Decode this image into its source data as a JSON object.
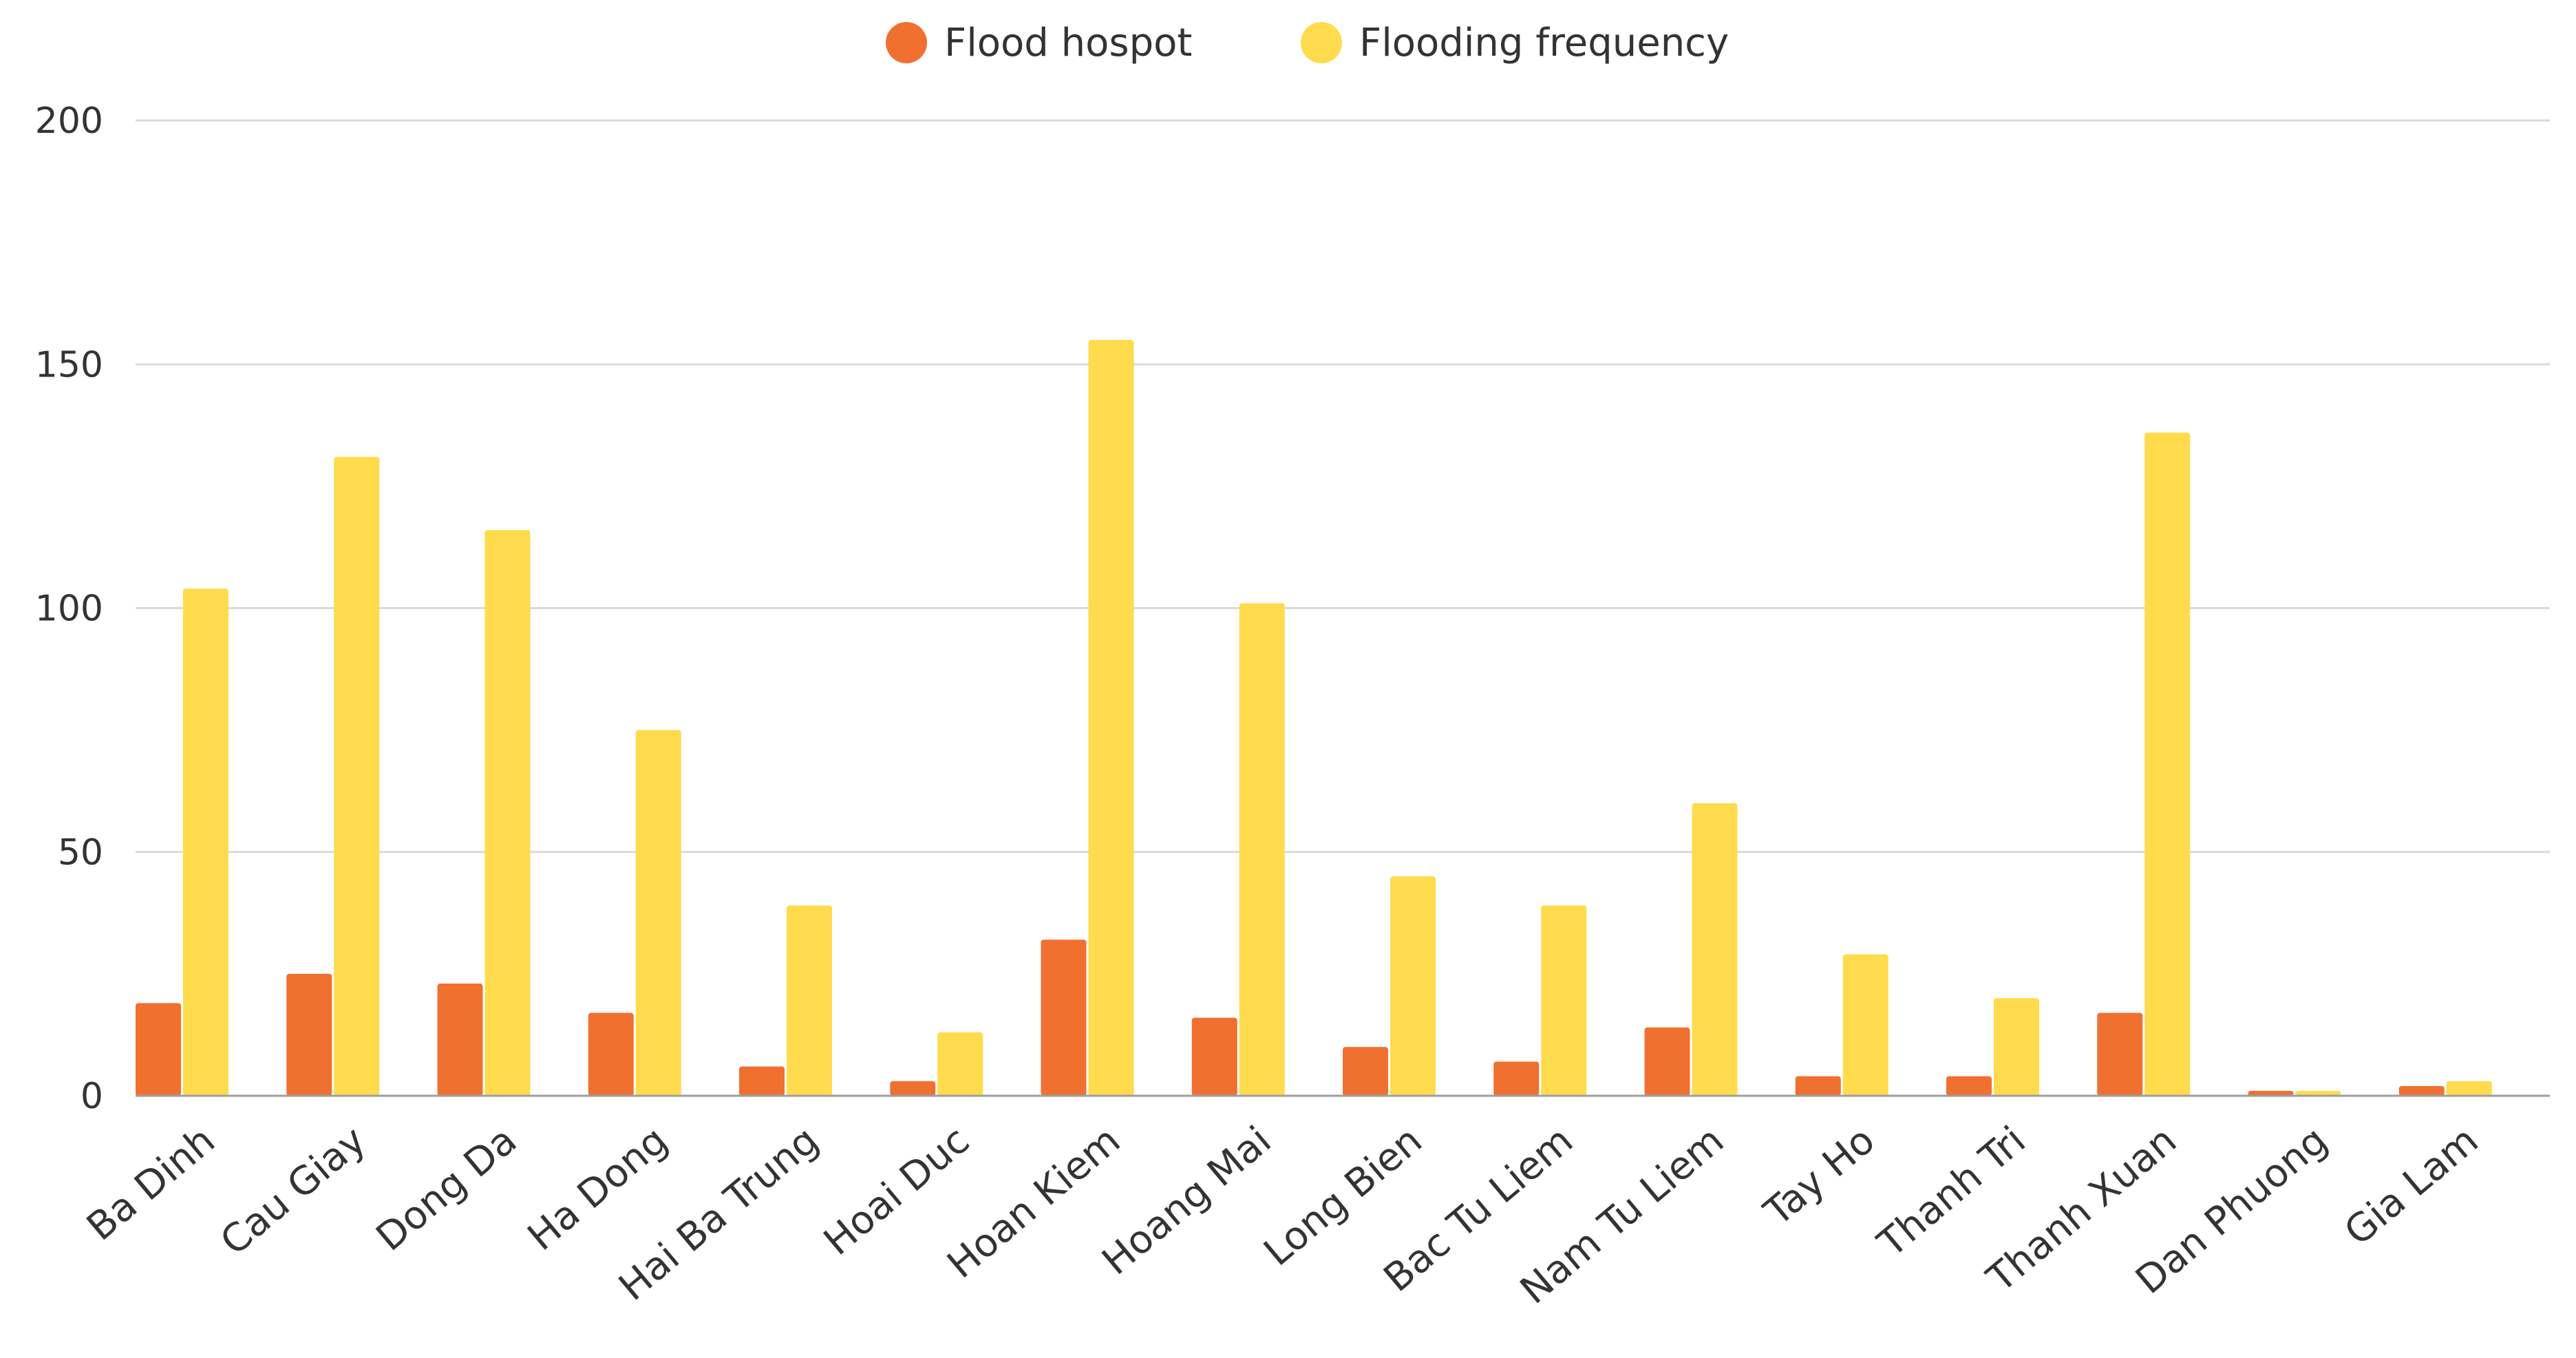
{
  "chart_data": {
    "type": "bar",
    "title": "",
    "xlabel": "",
    "ylabel": "",
    "ylim": [
      0,
      200
    ],
    "yticks": [
      0,
      50,
      100,
      150,
      200
    ],
    "grid": true,
    "legend_position": "top-center",
    "categories": [
      "Ba Dinh",
      "Cau Giay",
      "Dong Da",
      "Ha Dong",
      "Hai Ba Trung",
      "Hoai Duc",
      "Hoan Kiem",
      "Hoang Mai",
      "Long Bien",
      "Bac Tu Liem",
      "Nam Tu Liem",
      "Tay Ho",
      "Thanh Tri",
      "Thanh Xuan",
      "Dan Phuong",
      "Gia Lam"
    ],
    "series": [
      {
        "name": "Flood hospot",
        "color": "#F07030",
        "values": [
          19,
          25,
          23,
          17,
          6,
          3,
          32,
          16,
          10,
          7,
          14,
          4,
          4,
          17,
          1,
          2
        ]
      },
      {
        "name": "Flooding frequency",
        "color": "#FFDB4D",
        "values": [
          104,
          131,
          116,
          75,
          39,
          13,
          155,
          101,
          45,
          39,
          60,
          29,
          20,
          136,
          1,
          3
        ]
      }
    ]
  }
}
